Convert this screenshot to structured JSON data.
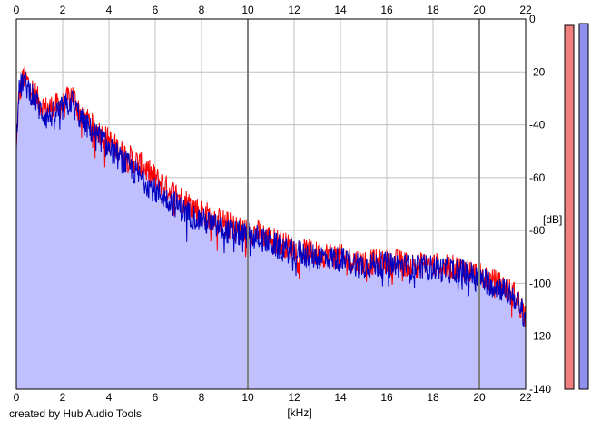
{
  "chart_data": {
    "type": "line",
    "xlabel": "[kHz]",
    "ylabel": "[dB]",
    "xlim": [
      0,
      22
    ],
    "ylim": [
      -140,
      0
    ],
    "x_ticks": [
      "0",
      "2",
      "4",
      "6",
      "8",
      "10",
      "12",
      "14",
      "16",
      "18",
      "20",
      "22"
    ],
    "y_ticks": [
      "0",
      "-20",
      "-40",
      "-60",
      "-80",
      "-100",
      "-120",
      "-140"
    ],
    "grid": true,
    "series": [
      {
        "color": "#ff0000",
        "x": [
          0,
          0.1,
          0.3,
          0.5,
          0.8,
          1.0,
          1.3,
          1.6,
          2.0,
          2.4,
          2.8,
          3.2,
          3.6,
          4.0,
          4.5,
          5.0,
          5.5,
          6.0,
          6.5,
          7.0,
          7.5,
          8.0,
          8.5,
          9.0,
          9.5,
          10.0,
          10.5,
          11.0,
          11.5,
          12.0,
          12.5,
          13.0,
          13.5,
          14.0,
          14.5,
          15.0,
          15.5,
          16.0,
          16.5,
          17.0,
          17.5,
          18.0,
          18.5,
          19.0,
          19.5,
          20.0,
          20.5,
          21.0,
          21.5,
          22.0
        ],
        "y": [
          -50,
          -30,
          -22,
          -24,
          -28,
          -32,
          -34,
          -33,
          -33,
          -28,
          -36,
          -40,
          -43,
          -46,
          -50,
          -53,
          -56,
          -60,
          -64,
          -67,
          -70,
          -73,
          -75,
          -77,
          -79,
          -80,
          -81,
          -83,
          -85,
          -87,
          -88,
          -89,
          -89,
          -90,
          -91,
          -92,
          -92,
          -92,
          -92,
          -93,
          -93,
          -93,
          -94,
          -94,
          -95,
          -97,
          -99,
          -101,
          -104,
          -112
        ]
      },
      {
        "color": "#0000c0",
        "x": [
          0,
          0.1,
          0.3,
          0.5,
          0.8,
          1.0,
          1.3,
          1.6,
          2.0,
          2.4,
          2.8,
          3.2,
          3.6,
          4.0,
          4.5,
          5.0,
          5.5,
          6.0,
          6.5,
          7.0,
          7.5,
          8.0,
          8.5,
          9.0,
          9.5,
          10.0,
          10.5,
          11.0,
          11.5,
          12.0,
          12.5,
          13.0,
          13.5,
          14.0,
          14.5,
          15.0,
          15.5,
          16.0,
          16.5,
          17.0,
          17.5,
          18.0,
          18.5,
          19.0,
          19.5,
          20.0,
          20.5,
          21.0,
          21.5,
          22.0
        ],
        "y": [
          -45,
          -28,
          -23,
          -26,
          -30,
          -34,
          -37,
          -36,
          -34,
          -31,
          -38,
          -42,
          -45,
          -49,
          -53,
          -57,
          -61,
          -65,
          -68,
          -71,
          -74,
          -76,
          -78,
          -80,
          -81,
          -82,
          -83,
          -85,
          -87,
          -88,
          -89,
          -90,
          -90,
          -91,
          -92,
          -93,
          -93,
          -93,
          -93,
          -94,
          -94,
          -94,
          -95,
          -95,
          -96,
          -98,
          -100,
          -102,
          -105,
          -113
        ]
      }
    ],
    "level_meters": [
      {
        "color": "#f08080",
        "level_db": -3
      },
      {
        "color": "#9090f0",
        "level_db": -2
      }
    ]
  },
  "footer": "created by Hub Audio Tools"
}
